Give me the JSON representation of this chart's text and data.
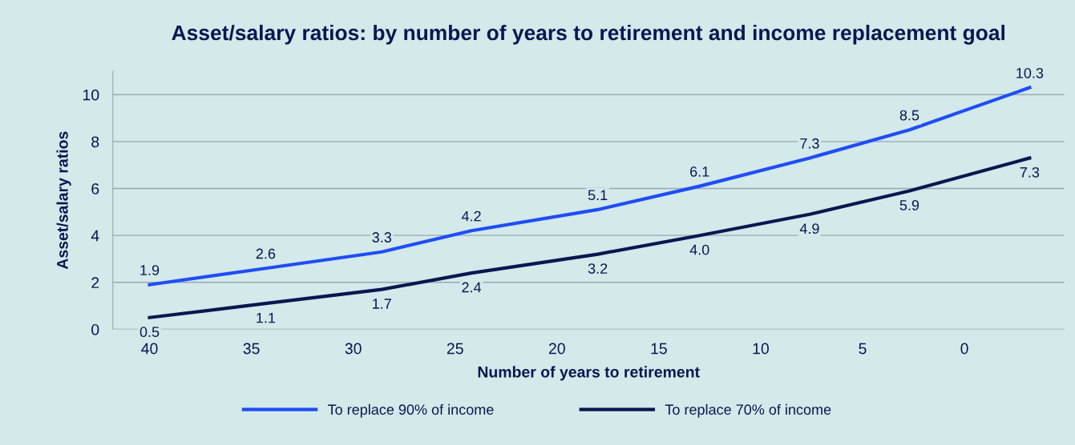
{
  "chart_data": {
    "type": "line",
    "title": "Asset/salary ratios: by number of years to retirement and income replacement goal",
    "xlabel": "Number of years to retirement",
    "ylabel": "Asset/salary ratios",
    "x": [
      40,
      34.3,
      28.6,
      24.2,
      18.0,
      13.0,
      7.6,
      2.7,
      -3.2
    ],
    "series": [
      {
        "name": "To replace 90% of income",
        "color": "#1f4ef5",
        "values": [
          1.9,
          2.6,
          3.3,
          4.2,
          5.1,
          6.1,
          7.3,
          8.5,
          10.3
        ]
      },
      {
        "name": "To replace 70% of income",
        "color": "#0b1650",
        "values": [
          0.5,
          1.1,
          1.7,
          2.4,
          3.2,
          4.0,
          4.9,
          5.9,
          7.3
        ],
        "value_labels": [
          "0.5",
          "1.1",
          "1.7",
          "2.4",
          "3.2",
          "4.0",
          "4.9",
          "5.9",
          "7.3"
        ]
      }
    ],
    "xlim": [
      41.8,
      -4.9
    ],
    "xticks": [
      40,
      35,
      30,
      25,
      20,
      15,
      10,
      5,
      0
    ],
    "ylim": [
      0,
      11
    ],
    "yticks": [
      0,
      2,
      4,
      6,
      8,
      10
    ],
    "data_labels": true,
    "grid": "y",
    "legend": "bottom",
    "marker": "none",
    "line_style": "solid"
  }
}
